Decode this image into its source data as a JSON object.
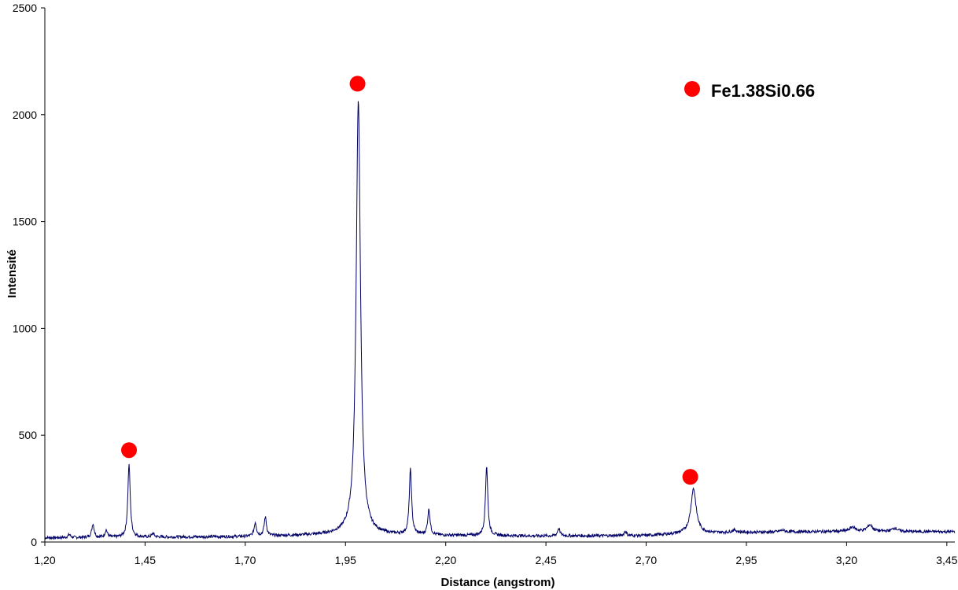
{
  "chart_data": {
    "type": "line",
    "title": "",
    "xlabel": "Distance (angstrom)",
    "ylabel": "Intensité",
    "xlim": [
      1.2,
      3.47
    ],
    "ylim": [
      0,
      2500
    ],
    "x_ticks": [
      "1,20",
      "1,45",
      "1,70",
      "1,95",
      "2,20",
      "2,45",
      "2,70",
      "2,95",
      "3,20",
      "3,45"
    ],
    "y_ticks": [
      "0",
      "500",
      "1000",
      "1500",
      "2000",
      "2500"
    ],
    "grid": false,
    "legend": {
      "label": "Fe1.38Si0.66",
      "marker": "red-circle",
      "placement": "top-right"
    },
    "colors": {
      "line": "#000066",
      "marker": "#ff0000"
    },
    "series": [
      {
        "values_description": "diffraction pattern",
        "baseline": [
          [
            1.2,
            20
          ],
          [
            1.7,
            25
          ],
          [
            1.95,
            35
          ],
          [
            2.2,
            30
          ],
          [
            2.45,
            28
          ],
          [
            2.7,
            30
          ],
          [
            2.8,
            40
          ],
          [
            2.95,
            45
          ],
          [
            3.2,
            50
          ],
          [
            3.47,
            48
          ]
        ],
        "peaks": [
          {
            "x": 1.261,
            "y": 35
          },
          {
            "x": 1.32,
            "y": 85
          },
          {
            "x": 1.353,
            "y": 55
          },
          {
            "x": 1.41,
            "y": 360
          },
          {
            "x": 1.47,
            "y": 40
          },
          {
            "x": 1.725,
            "y": 90
          },
          {
            "x": 1.75,
            "y": 115
          },
          {
            "x": 1.982,
            "y": 2065
          },
          {
            "x": 2.112,
            "y": 335
          },
          {
            "x": 2.158,
            "y": 150
          },
          {
            "x": 2.302,
            "y": 355
          },
          {
            "x": 2.482,
            "y": 65
          },
          {
            "x": 2.648,
            "y": 50
          },
          {
            "x": 2.818,
            "y": 250
          },
          {
            "x": 2.92,
            "y": 55
          },
          {
            "x": 3.04,
            "y": 55
          },
          {
            "x": 3.215,
            "y": 70
          },
          {
            "x": 3.258,
            "y": 80
          },
          {
            "x": 3.32,
            "y": 65
          }
        ]
      }
    ],
    "markers": [
      {
        "x": 1.41,
        "y": 430
      },
      {
        "x": 1.98,
        "y": 2145
      },
      {
        "x": 2.81,
        "y": 305
      }
    ]
  }
}
